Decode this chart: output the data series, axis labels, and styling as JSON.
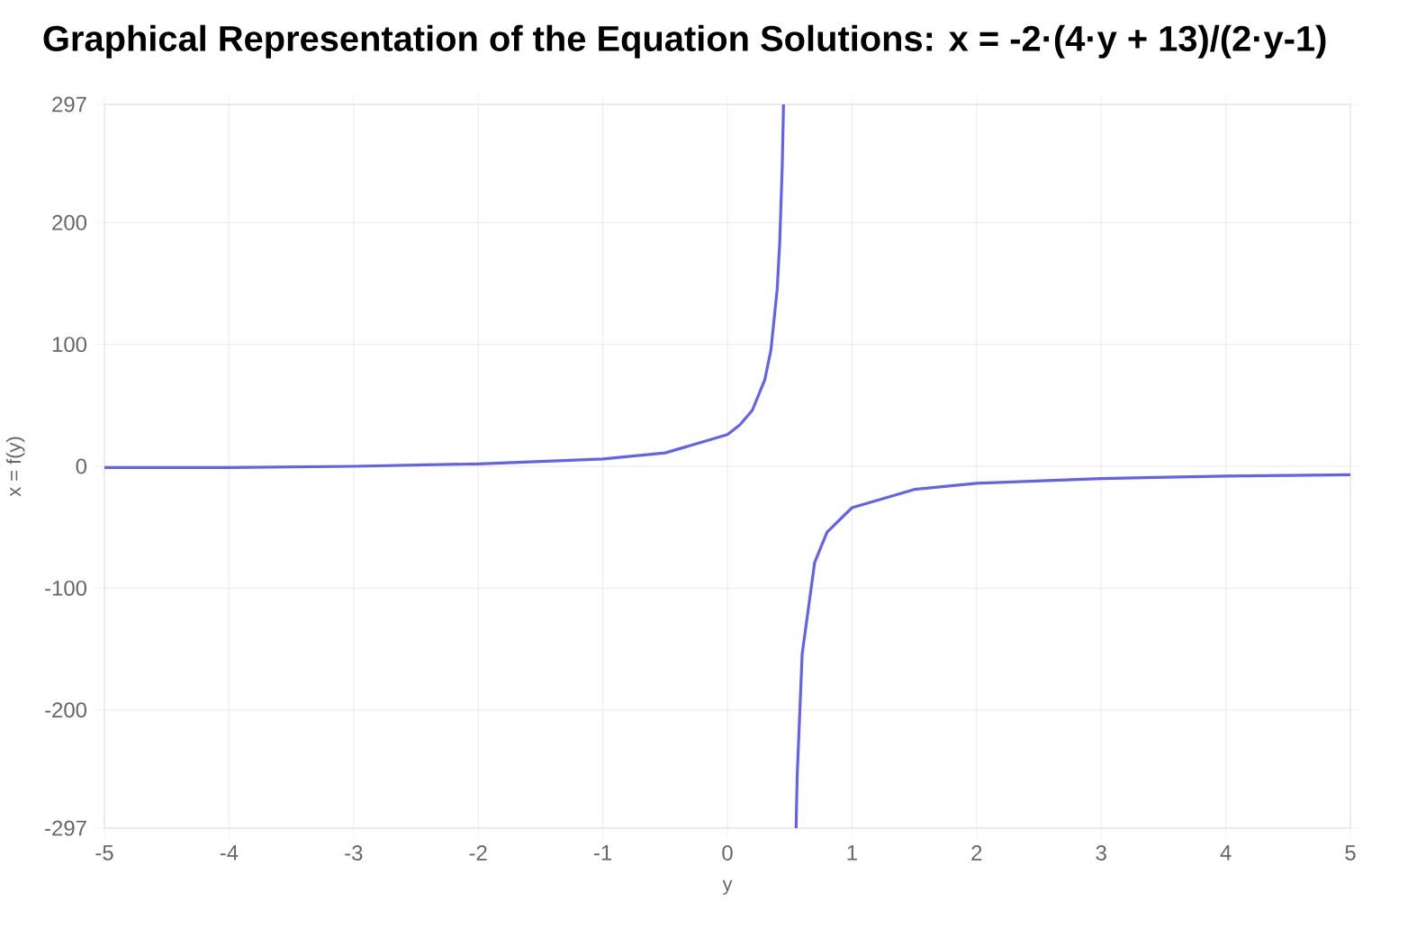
{
  "chart_data": {
    "type": "line",
    "title": "Graphical Representation of the Equation Solutions: x = -2·(4·y + 13)/(2·y-1)",
    "xlabel": "y",
    "ylabel": "x = f(y)",
    "series": [
      {
        "color": "#6262ea",
        "x": [
          -5,
          -4,
          -3,
          -2,
          -1.5,
          -1,
          -0.5,
          0,
          0.1,
          0.2,
          0.3,
          0.35,
          0.4,
          0.42,
          0.44,
          0.4502
        ],
        "values": [
          -1,
          -1,
          0,
          2,
          4,
          6,
          11,
          26,
          34,
          46,
          71,
          96,
          146,
          184,
          246,
          297
        ]
      },
      {
        "color": "#6262ea",
        "x": [
          0.5512,
          0.56,
          0.6,
          0.7,
          0.8,
          1,
          1.5,
          2,
          3,
          4,
          5
        ],
        "values": [
          -297,
          -254,
          -154,
          -79,
          -54,
          -34,
          -19,
          -14,
          -10,
          -8,
          -7
        ]
      }
    ],
    "xlim": [
      -5,
      5
    ],
    "xticks": [
      -5,
      -4,
      -3,
      -2,
      -1,
      0,
      1,
      2,
      3,
      4,
      5
    ],
    "ylim": [
      -297,
      297
    ],
    "yticks": [
      -297,
      -200,
      -100,
      0,
      100,
      200,
      297
    ],
    "grid": true,
    "marker": "none",
    "line_style": "solid"
  }
}
